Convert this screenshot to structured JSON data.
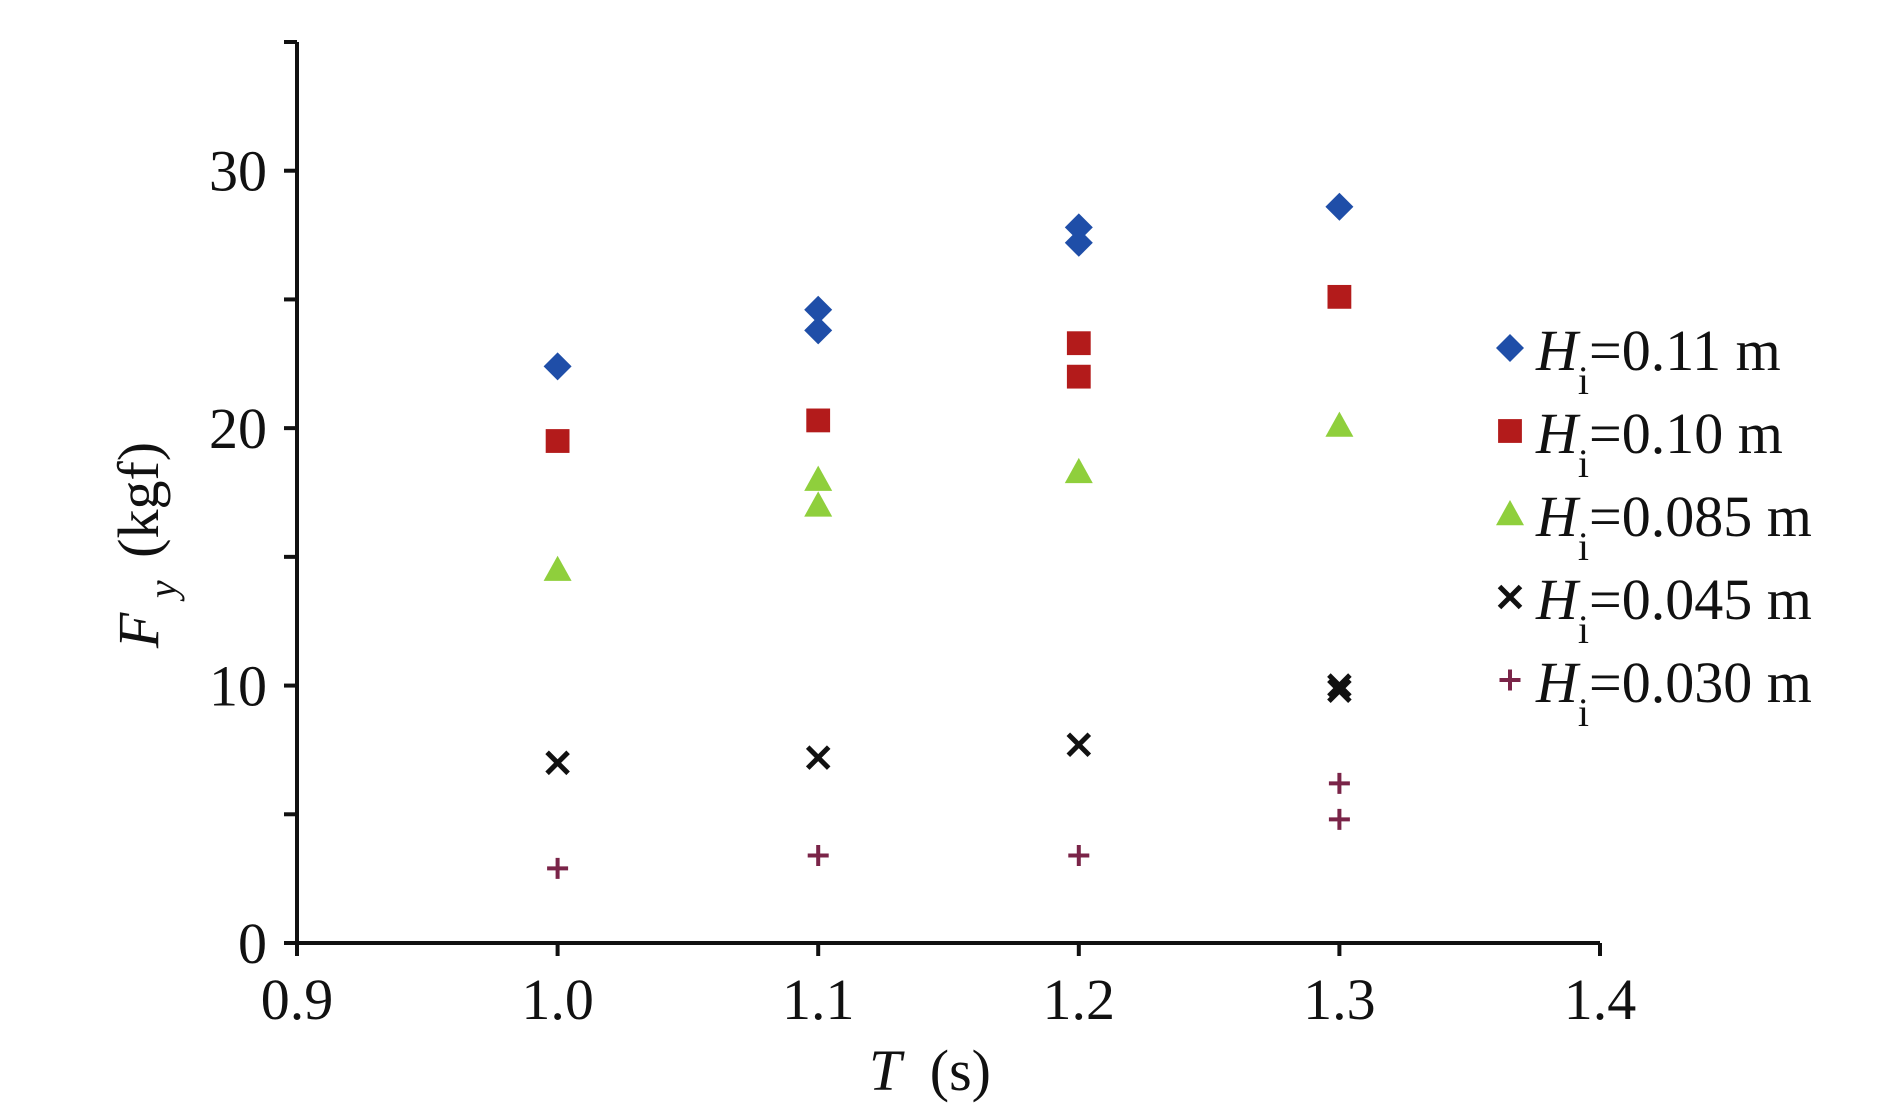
{
  "chart_data": {
    "type": "scatter",
    "title": "",
    "xlabel": {
      "symbol": "T",
      "unit": "(s)"
    },
    "ylabel": {
      "symbol": "F",
      "subscript": "y",
      "unit": "(kgf)"
    },
    "xlim": [
      0.9,
      1.4
    ],
    "ylim": [
      0,
      35
    ],
    "x_ticks": [
      "0.9",
      "1.0",
      "1.1",
      "1.2",
      "1.3",
      "1.4"
    ],
    "y_tick_values": [
      0,
      5,
      10,
      15,
      20,
      25,
      30,
      35
    ],
    "y_tick_labels": [
      "0",
      "10",
      "20",
      "30"
    ],
    "grid": false,
    "legend_position": "right",
    "series": [
      {
        "name": {
          "symbol": "H",
          "subscript": "i",
          "value": "=0.11 m"
        },
        "marker": "diamond",
        "color": "#1f4ea8",
        "points": [
          [
            1.0,
            22.4
          ],
          [
            1.1,
            24.6
          ],
          [
            1.1,
            23.8
          ],
          [
            1.2,
            27.8
          ],
          [
            1.2,
            27.2
          ],
          [
            1.3,
            28.6
          ]
        ]
      },
      {
        "name": {
          "symbol": "H",
          "subscript": "i",
          "value": "=0.10 m"
        },
        "marker": "square",
        "color": "#b31b1b",
        "points": [
          [
            1.0,
            19.5
          ],
          [
            1.1,
            20.3
          ],
          [
            1.2,
            23.3
          ],
          [
            1.2,
            22.0
          ],
          [
            1.3,
            25.1
          ]
        ]
      },
      {
        "name": {
          "symbol": "H",
          "subscript": "i",
          "value": "=0.085 m"
        },
        "marker": "triangle",
        "color": "#8fcf3c",
        "points": [
          [
            1.0,
            14.5
          ],
          [
            1.1,
            18.0
          ],
          [
            1.1,
            17.0
          ],
          [
            1.2,
            18.3
          ],
          [
            1.3,
            20.1
          ]
        ]
      },
      {
        "name": {
          "symbol": "H",
          "subscript": "i",
          "value": "=0.045 m"
        },
        "marker": "x",
        "color": "#111111",
        "points": [
          [
            1.0,
            7.0
          ],
          [
            1.1,
            7.2
          ],
          [
            1.2,
            7.7
          ],
          [
            1.3,
            9.8
          ],
          [
            1.3,
            10.0
          ]
        ]
      },
      {
        "name": {
          "symbol": "H",
          "subscript": "i",
          "value": "=0.030 m"
        },
        "marker": "plus",
        "color": "#7a2448",
        "points": [
          [
            1.0,
            2.9
          ],
          [
            1.1,
            3.4
          ],
          [
            1.2,
            3.4
          ],
          [
            1.3,
            6.2
          ],
          [
            1.3,
            4.8
          ]
        ]
      }
    ]
  }
}
